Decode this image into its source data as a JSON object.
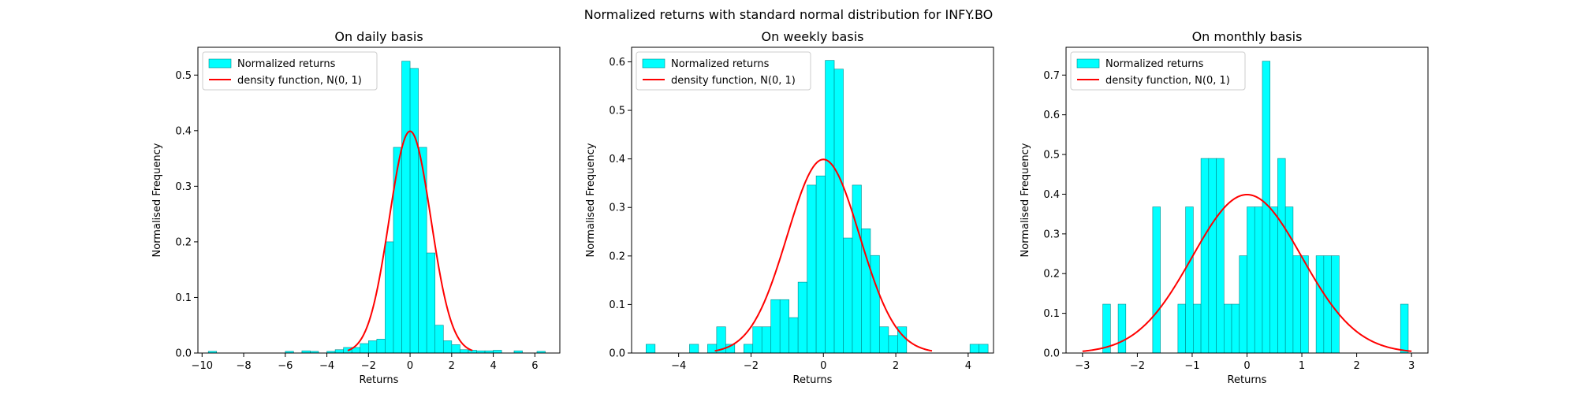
{
  "figure": {
    "suptitle": "Normalized returns with standard normal distribution for INFY.BO"
  },
  "style": {
    "bar_fill": "#00ffff",
    "bar_edge": "#008b8b",
    "curve_color": "#ff0000",
    "axes_color": "#000000"
  },
  "legend_labels": {
    "bars": "Normalized returns",
    "curve": "density function, N(0, 1)"
  },
  "chart_data": [
    {
      "type": "bar",
      "title": "On daily basis",
      "xlabel": "Returns",
      "ylabel": "Normalised Frequency",
      "xlim": [
        -10.2,
        7.2
      ],
      "ylim": [
        0,
        0.55
      ],
      "xticks": [
        -10,
        -8,
        -6,
        -4,
        -2,
        0,
        2,
        4,
        6
      ],
      "yticks": [
        0.0,
        0.1,
        0.2,
        0.3,
        0.4,
        0.5
      ],
      "legend_position": "upper-left",
      "grid": false,
      "histogram": {
        "name": "Normalized returns",
        "bins": [
          {
            "x0": -9.7,
            "x1": -9.3,
            "value": 0.003
          },
          {
            "x0": -6.0,
            "x1": -5.6,
            "value": 0.003
          },
          {
            "x0": -5.2,
            "x1": -4.8,
            "value": 0.004
          },
          {
            "x0": -4.8,
            "x1": -4.4,
            "value": 0.003
          },
          {
            "x0": -4.0,
            "x1": -3.6,
            "value": 0.003
          },
          {
            "x0": -3.6,
            "x1": -3.2,
            "value": 0.006
          },
          {
            "x0": -3.2,
            "x1": -2.8,
            "value": 0.01
          },
          {
            "x0": -2.8,
            "x1": -2.4,
            "value": 0.01
          },
          {
            "x0": -2.4,
            "x1": -2.0,
            "value": 0.017
          },
          {
            "x0": -2.0,
            "x1": -1.6,
            "value": 0.022
          },
          {
            "x0": -1.6,
            "x1": -1.2,
            "value": 0.025
          },
          {
            "x0": -1.2,
            "x1": -0.8,
            "value": 0.2
          },
          {
            "x0": -0.8,
            "x1": -0.4,
            "value": 0.37
          },
          {
            "x0": -0.4,
            "x1": 0.0,
            "value": 0.525
          },
          {
            "x0": 0.0,
            "x1": 0.4,
            "value": 0.512
          },
          {
            "x0": 0.4,
            "x1": 0.8,
            "value": 0.37
          },
          {
            "x0": 0.8,
            "x1": 1.2,
            "value": 0.18
          },
          {
            "x0": 1.2,
            "x1": 1.6,
            "value": 0.05
          },
          {
            "x0": 1.6,
            "x1": 2.0,
            "value": 0.022
          },
          {
            "x0": 2.0,
            "x1": 2.4,
            "value": 0.015
          },
          {
            "x0": 2.4,
            "x1": 2.8,
            "value": 0.006
          },
          {
            "x0": 2.8,
            "x1": 3.2,
            "value": 0.005
          },
          {
            "x0": 3.2,
            "x1": 3.6,
            "value": 0.004
          },
          {
            "x0": 3.6,
            "x1": 4.0,
            "value": 0.004
          },
          {
            "x0": 4.0,
            "x1": 4.4,
            "value": 0.005
          },
          {
            "x0": 5.0,
            "x1": 5.4,
            "value": 0.004
          },
          {
            "x0": 6.1,
            "x1": 6.5,
            "value": 0.003
          }
        ]
      },
      "density_curve": {
        "name": "density function, N(0, 1)",
        "mean": 0,
        "sd": 1,
        "x_range": [
          -3,
          3
        ]
      }
    },
    {
      "type": "bar",
      "title": "On weekly basis",
      "xlabel": "Returns",
      "ylabel": "Normalised Frequency",
      "xlim": [
        -5.3,
        4.7
      ],
      "ylim": [
        0,
        0.63
      ],
      "xticks": [
        -4,
        -2,
        0,
        2,
        4
      ],
      "yticks": [
        0.0,
        0.1,
        0.2,
        0.3,
        0.4,
        0.5,
        0.6
      ],
      "legend_position": "upper-left",
      "grid": false,
      "histogram": {
        "name": "Normalized returns",
        "bins": [
          {
            "x0": -4.9,
            "x1": -4.65,
            "value": 0.018
          },
          {
            "x0": -3.7,
            "x1": -3.45,
            "value": 0.018
          },
          {
            "x0": -3.2,
            "x1": -2.95,
            "value": 0.018
          },
          {
            "x0": -2.95,
            "x1": -2.7,
            "value": 0.054
          },
          {
            "x0": -2.7,
            "x1": -2.45,
            "value": 0.018
          },
          {
            "x0": -2.45,
            "x1": -2.2,
            "value": 0.0
          },
          {
            "x0": -2.2,
            "x1": -1.95,
            "value": 0.018
          },
          {
            "x0": -1.95,
            "x1": -1.7,
            "value": 0.054
          },
          {
            "x0": -1.7,
            "x1": -1.45,
            "value": 0.054
          },
          {
            "x0": -1.45,
            "x1": -1.2,
            "value": 0.11
          },
          {
            "x0": -1.2,
            "x1": -0.95,
            "value": 0.11
          },
          {
            "x0": -0.95,
            "x1": -0.7,
            "value": 0.073
          },
          {
            "x0": -0.7,
            "x1": -0.45,
            "value": 0.146
          },
          {
            "x0": -0.45,
            "x1": -0.2,
            "value": 0.346
          },
          {
            "x0": -0.2,
            "x1": 0.05,
            "value": 0.365
          },
          {
            "x0": 0.05,
            "x1": 0.3,
            "value": 0.603
          },
          {
            "x0": 0.3,
            "x1": 0.55,
            "value": 0.585
          },
          {
            "x0": 0.55,
            "x1": 0.8,
            "value": 0.237
          },
          {
            "x0": 0.8,
            "x1": 1.05,
            "value": 0.346
          },
          {
            "x0": 1.05,
            "x1": 1.3,
            "value": 0.256
          },
          {
            "x0": 1.3,
            "x1": 1.55,
            "value": 0.201
          },
          {
            "x0": 1.55,
            "x1": 1.8,
            "value": 0.054
          },
          {
            "x0": 1.8,
            "x1": 2.05,
            "value": 0.036
          },
          {
            "x0": 2.05,
            "x1": 2.3,
            "value": 0.054
          },
          {
            "x0": 4.05,
            "x1": 4.3,
            "value": 0.018
          },
          {
            "x0": 4.3,
            "x1": 4.55,
            "value": 0.018
          }
        ]
      },
      "density_curve": {
        "name": "density function, N(0, 1)",
        "mean": 0,
        "sd": 1,
        "x_range": [
          -3,
          3
        ]
      }
    },
    {
      "type": "bar",
      "title": "On monthly basis",
      "xlabel": "Returns",
      "ylabel": "Normalised Frequency",
      "xlim": [
        -3.3,
        3.3
      ],
      "ylim": [
        0,
        0.77
      ],
      "xticks": [
        -3,
        -2,
        -1,
        0,
        1,
        2,
        3
      ],
      "yticks": [
        0.0,
        0.1,
        0.2,
        0.3,
        0.4,
        0.5,
        0.6,
        0.7
      ],
      "legend_position": "upper-left",
      "grid": false,
      "histogram": {
        "name": "Normalized returns",
        "bins": [
          {
            "x0": -2.63,
            "x1": -2.49,
            "value": 0.123
          },
          {
            "x0": -2.35,
            "x1": -2.21,
            "value": 0.123
          },
          {
            "x0": -1.72,
            "x1": -1.58,
            "value": 0.368
          },
          {
            "x0": -1.26,
            "x1": -1.12,
            "value": 0.123
          },
          {
            "x0": -1.12,
            "x1": -0.98,
            "value": 0.368
          },
          {
            "x0": -0.98,
            "x1": -0.84,
            "value": 0.123
          },
          {
            "x0": -0.84,
            "x1": -0.7,
            "value": 0.49
          },
          {
            "x0": -0.7,
            "x1": -0.56,
            "value": 0.49
          },
          {
            "x0": -0.56,
            "x1": -0.42,
            "value": 0.49
          },
          {
            "x0": -0.42,
            "x1": -0.28,
            "value": 0.123
          },
          {
            "x0": -0.28,
            "x1": -0.14,
            "value": 0.123
          },
          {
            "x0": -0.14,
            "x1": 0.0,
            "value": 0.245
          },
          {
            "x0": 0.0,
            "x1": 0.14,
            "value": 0.368
          },
          {
            "x0": 0.14,
            "x1": 0.28,
            "value": 0.368
          },
          {
            "x0": 0.28,
            "x1": 0.42,
            "value": 0.735
          },
          {
            "x0": 0.42,
            "x1": 0.56,
            "value": 0.368
          },
          {
            "x0": 0.56,
            "x1": 0.7,
            "value": 0.49
          },
          {
            "x0": 0.7,
            "x1": 0.84,
            "value": 0.368
          },
          {
            "x0": 0.84,
            "x1": 0.98,
            "value": 0.245
          },
          {
            "x0": 0.98,
            "x1": 1.12,
            "value": 0.245
          },
          {
            "x0": 1.26,
            "x1": 1.4,
            "value": 0.245
          },
          {
            "x0": 1.4,
            "x1": 1.54,
            "value": 0.245
          },
          {
            "x0": 1.54,
            "x1": 1.68,
            "value": 0.245
          },
          {
            "x0": 2.8,
            "x1": 2.94,
            "value": 0.123
          }
        ]
      },
      "density_curve": {
        "name": "density function, N(0, 1)",
        "mean": 0,
        "sd": 1,
        "x_range": [
          -3,
          3
        ]
      }
    }
  ]
}
